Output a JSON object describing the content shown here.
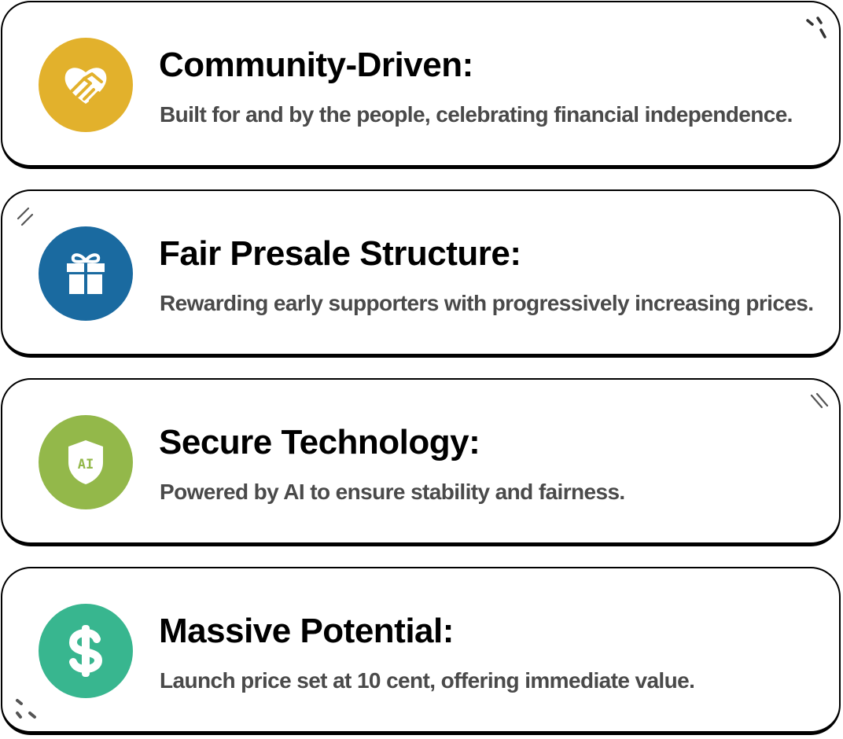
{
  "features": [
    {
      "title": "Community-Driven:",
      "description": "Built for and by the people, celebrating financial independence.",
      "icon": "handshake-heart-icon",
      "color": "#e2b12c"
    },
    {
      "title": "Fair Presale Structure:",
      "description": "Rewarding early supporters with progressively increasing prices.",
      "icon": "gift-icon",
      "color": "#1a6aa0"
    },
    {
      "title": "Secure Technology:",
      "description": "Powered by AI to ensure stability and fairness.",
      "icon": "ai-shield-icon",
      "icon_text": "AI",
      "color": "#93b84a"
    },
    {
      "title": "Massive Potential:",
      "description": "Launch price set at 10 cent, offering immediate value.",
      "icon": "dollar-sign-icon",
      "color": "#38b68f"
    }
  ]
}
